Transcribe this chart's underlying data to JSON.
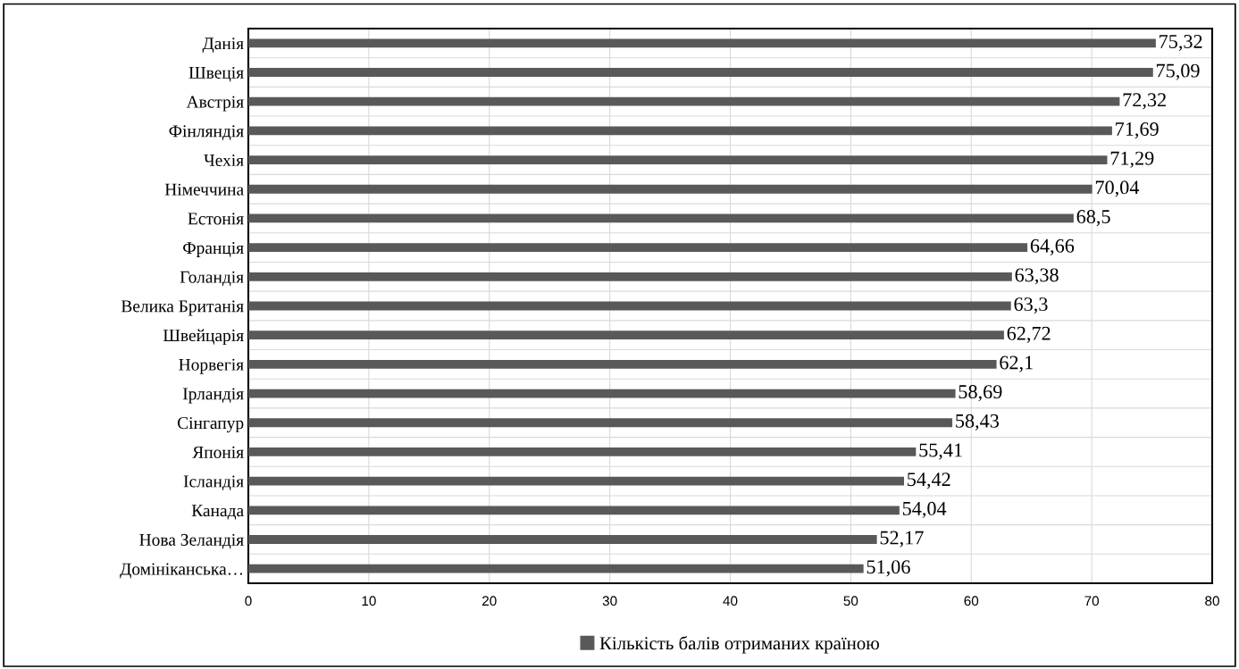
{
  "chart_data": {
    "type": "bar",
    "orientation": "horizontal",
    "categories": [
      "Данія",
      "Швеція",
      "Австрія",
      "Фінляндія",
      "Чехія",
      "Німеччина",
      "Естонія",
      "Франція",
      "Голандія",
      "Велика Британія",
      "Швейцарія",
      "Норвегія",
      "Ірландія",
      "Сінгапур",
      "Японія",
      "Ісландія",
      "Канада",
      "Нова Зеландія",
      "Домініканська…"
    ],
    "series": [
      {
        "name": "Кількість балів отриманих країною",
        "color": "#595959",
        "values": [
          75.32,
          75.09,
          72.32,
          71.69,
          71.29,
          70.04,
          68.5,
          64.66,
          63.38,
          63.3,
          62.72,
          62.1,
          58.69,
          58.43,
          55.41,
          54.42,
          54.04,
          52.17,
          51.06
        ],
        "value_labels": [
          "75,32",
          "75,09",
          "72,32",
          "71,69",
          "71,29",
          "70,04",
          "68,5",
          "64,66",
          "63,38",
          "63,3",
          "62,72",
          "62,1",
          "58,69",
          "58,43",
          "55,41",
          "54,42",
          "54,04",
          "52,17",
          "51,06"
        ]
      }
    ],
    "xlim": [
      0,
      80
    ],
    "xticks": [
      0,
      10,
      20,
      30,
      40,
      50,
      60,
      70,
      80
    ],
    "grid": true,
    "legend": "bottom"
  }
}
